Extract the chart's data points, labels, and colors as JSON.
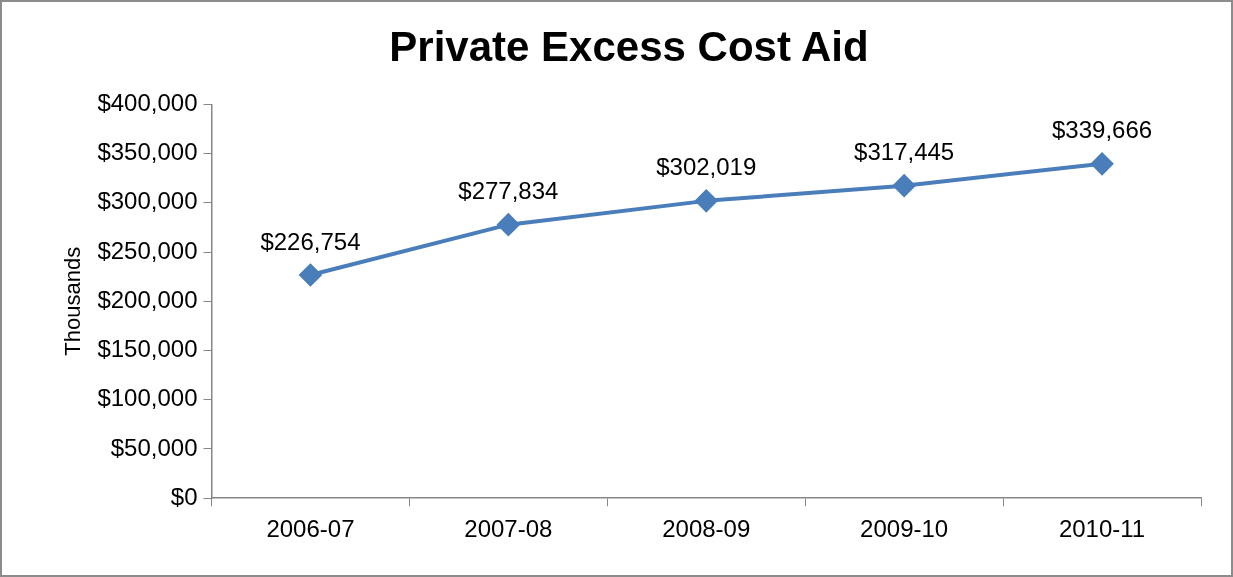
{
  "chart_data": {
    "type": "line",
    "title": "Private Excess Cost Aid",
    "ylabel": "Thousands",
    "categories": [
      "2006-07",
      "2007-08",
      "2008-09",
      "2009-10",
      "2010-11"
    ],
    "series": [
      {
        "color": "#4a7ebb",
        "values": [
          226754,
          277834,
          302019,
          317445,
          339666
        ],
        "value_labels": [
          "$226,754",
          "$277,834",
          "$302,019",
          "$317,445",
          "$339,666"
        ]
      }
    ],
    "ylim": [
      0,
      400000
    ],
    "yticks": [
      {
        "value": 0,
        "label": "$0"
      },
      {
        "value": 50000,
        "label": "$50,000"
      },
      {
        "value": 100000,
        "label": "$100,000"
      },
      {
        "value": 150000,
        "label": "$150,000"
      },
      {
        "value": 200000,
        "label": "$200,000"
      },
      {
        "value": 250000,
        "label": "$250,000"
      },
      {
        "value": 300000,
        "label": "$300,000"
      },
      {
        "value": 350000,
        "label": "$350,000"
      },
      {
        "value": 400000,
        "label": "$400,000"
      }
    ],
    "marker": "diamond",
    "line_style": "solid",
    "grid": false,
    "legend": false
  }
}
